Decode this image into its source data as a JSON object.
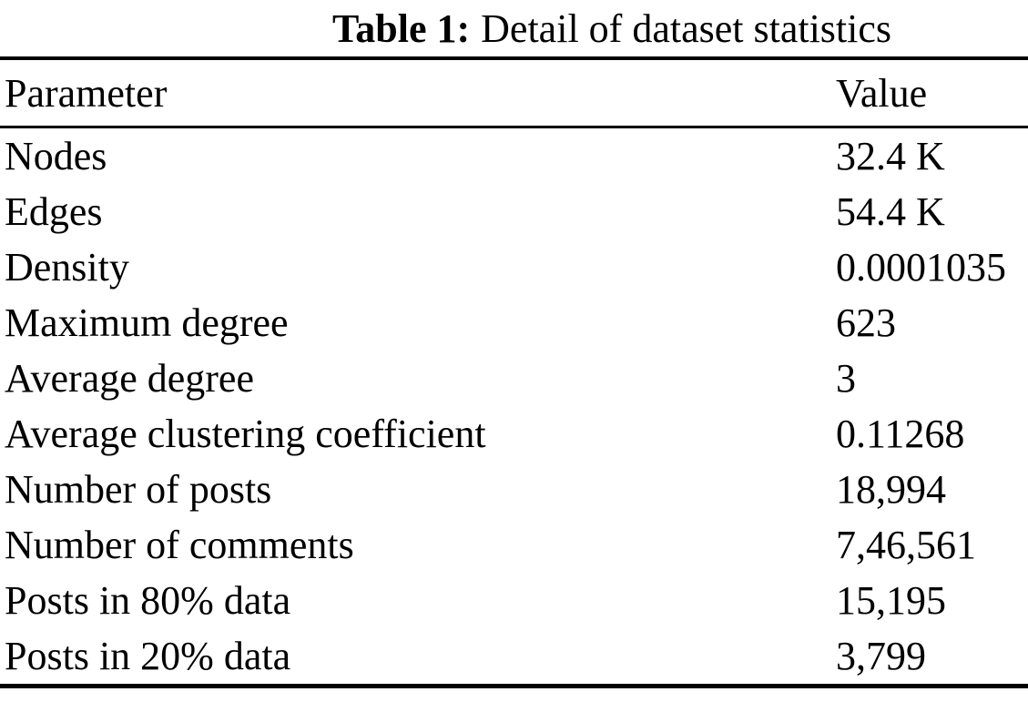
{
  "table": {
    "caption": {
      "label": "Table 1:",
      "text": "Detail of dataset statistics"
    },
    "columns": [
      "Parameter",
      "Value"
    ],
    "rows": [
      {
        "parameter": "Nodes",
        "value": "32.4 K"
      },
      {
        "parameter": "Edges",
        "value": "54.4 K"
      },
      {
        "parameter": "Density",
        "value": "0.0001035"
      },
      {
        "parameter": "Maximum degree",
        "value": "623"
      },
      {
        "parameter": "Average degree",
        "value": "3"
      },
      {
        "parameter": "Average clustering coefficient",
        "value": "0.11268"
      },
      {
        "parameter": "Number of posts",
        "value": "18,994"
      },
      {
        "parameter": "Number of comments",
        "value": "7,46,561"
      },
      {
        "parameter": "Posts in 80% data",
        "value": "15,195"
      },
      {
        "parameter": "Posts in 20% data",
        "value": "3,799"
      }
    ],
    "colors": {
      "text": "#000000",
      "background": "#ffffff",
      "rule": "#000000"
    }
  },
  "chart_data": {
    "type": "table",
    "title": "Table 1: Detail of dataset statistics",
    "columns": [
      "Parameter",
      "Value"
    ],
    "rows": [
      [
        "Nodes",
        "32.4 K"
      ],
      [
        "Edges",
        "54.4 K"
      ],
      [
        "Density",
        "0.0001035"
      ],
      [
        "Maximum degree",
        "623"
      ],
      [
        "Average degree",
        "3"
      ],
      [
        "Average clustering coefficient",
        "0.11268"
      ],
      [
        "Number of posts",
        "18,994"
      ],
      [
        "Number of comments",
        "7,46,561"
      ],
      [
        "Posts in 80% data",
        "15,195"
      ],
      [
        "Posts in 20% data",
        "3,799"
      ]
    ]
  }
}
